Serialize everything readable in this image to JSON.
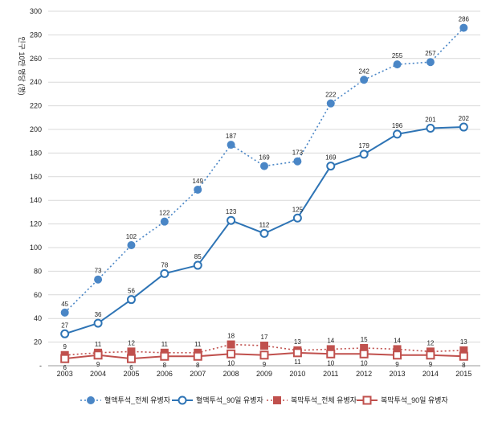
{
  "chart_data": {
    "type": "line",
    "title": "",
    "ylabel": "인구 10만 명당 (명)",
    "xlabel": "",
    "x": [
      "2003",
      "2004",
      "2005",
      "2006",
      "2007",
      "2008",
      "2009",
      "2010",
      "2011",
      "2012",
      "2013",
      "2014",
      "2015"
    ],
    "ylim": [
      0,
      300
    ],
    "yticks": [
      "-",
      "20",
      "40",
      "60",
      "80",
      "100",
      "120",
      "140",
      "160",
      "180",
      "200",
      "220",
      "240",
      "260",
      "280",
      "300"
    ],
    "grid": "horizontal",
    "legend": "bottom",
    "series": [
      {
        "name": "혈액투석_전체 유병자",
        "values": [
          45,
          73,
          102,
          122,
          149,
          187,
          169,
          173,
          222,
          242,
          255,
          257,
          286
        ],
        "color": "#4a86c6",
        "style": "dotted",
        "marker": "filled-circle",
        "label_pos": "above"
      },
      {
        "name": "혈액투석_90일 유병자",
        "values": [
          27,
          36,
          56,
          78,
          85,
          123,
          112,
          125,
          169,
          179,
          196,
          201,
          202
        ],
        "color": "#2e74b5",
        "style": "solid",
        "marker": "open-circle",
        "label_pos": "above"
      },
      {
        "name": "복막투석_전체 유병자",
        "values": [
          9,
          11,
          12,
          11,
          11,
          18,
          17,
          13,
          14,
          15,
          14,
          12,
          13
        ],
        "color": "#c0504d",
        "style": "dotted",
        "marker": "filled-square",
        "label_pos": "above"
      },
      {
        "name": "복막투석_90일 유병자",
        "values": [
          6,
          9,
          6,
          8,
          8,
          10,
          9,
          11,
          10,
          10,
          9,
          9,
          8
        ],
        "color": "#c0504d",
        "style": "solid",
        "marker": "open-square",
        "label_pos": "below"
      }
    ]
  }
}
